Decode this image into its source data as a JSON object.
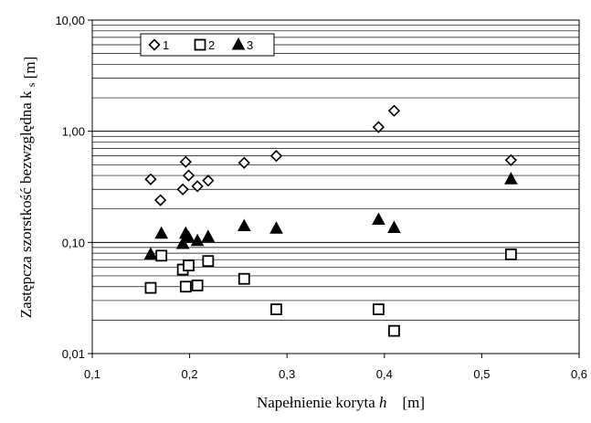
{
  "chart_data": {
    "type": "scatter",
    "xlabel": "Napełnienie koryta",
    "xlabel_var": "h",
    "xlabel_unit": "[m]",
    "ylabel": "Zastępcza szorstkość bezwzględna",
    "ylabel_var": "k",
    "ylabel_sub": "s",
    "ylabel_unit": "[m]",
    "xlim": [
      0.1,
      0.6
    ],
    "ylim": [
      0.01,
      10
    ],
    "yscale": "log",
    "x_ticks": [
      0.1,
      0.2,
      0.3,
      0.4,
      0.5,
      0.6
    ],
    "x_tick_labels": [
      "0,1",
      "0,2",
      "0,3",
      "0,4",
      "0,5",
      "0,6"
    ],
    "y_ticks": [
      0.01,
      0.1,
      1,
      10
    ],
    "y_tick_labels": [
      "0,01",
      "0,10",
      "1,00",
      "10,00"
    ],
    "grid": "horizontal",
    "legend": "top-left",
    "series": [
      {
        "name": "1",
        "marker": "diamond-open",
        "points": [
          [
            0.16,
            0.37
          ],
          [
            0.17,
            0.24
          ],
          [
            0.193,
            0.3
          ],
          [
            0.196,
            0.53
          ],
          [
            0.199,
            0.4
          ],
          [
            0.208,
            0.32
          ],
          [
            0.219,
            0.36
          ],
          [
            0.256,
            0.52
          ],
          [
            0.289,
            0.6
          ],
          [
            0.394,
            1.09
          ],
          [
            0.41,
            1.53
          ],
          [
            0.53,
            0.55
          ]
        ]
      },
      {
        "name": "2",
        "marker": "square-open",
        "points": [
          [
            0.16,
            0.039
          ],
          [
            0.171,
            0.076
          ],
          [
            0.193,
            0.057
          ],
          [
            0.196,
            0.04
          ],
          [
            0.199,
            0.062
          ],
          [
            0.208,
            0.041
          ],
          [
            0.219,
            0.068
          ],
          [
            0.256,
            0.047
          ],
          [
            0.289,
            0.025
          ],
          [
            0.394,
            0.025
          ],
          [
            0.41,
            0.016
          ],
          [
            0.53,
            0.078
          ]
        ]
      },
      {
        "name": "3",
        "marker": "triangle-filled",
        "points": [
          [
            0.16,
            0.078
          ],
          [
            0.171,
            0.12
          ],
          [
            0.193,
            0.097
          ],
          [
            0.196,
            0.12
          ],
          [
            0.199,
            0.11
          ],
          [
            0.208,
            0.103
          ],
          [
            0.219,
            0.112
          ],
          [
            0.256,
            0.14
          ],
          [
            0.289,
            0.133
          ],
          [
            0.394,
            0.16
          ],
          [
            0.41,
            0.135
          ],
          [
            0.53,
            0.37
          ]
        ]
      }
    ]
  }
}
